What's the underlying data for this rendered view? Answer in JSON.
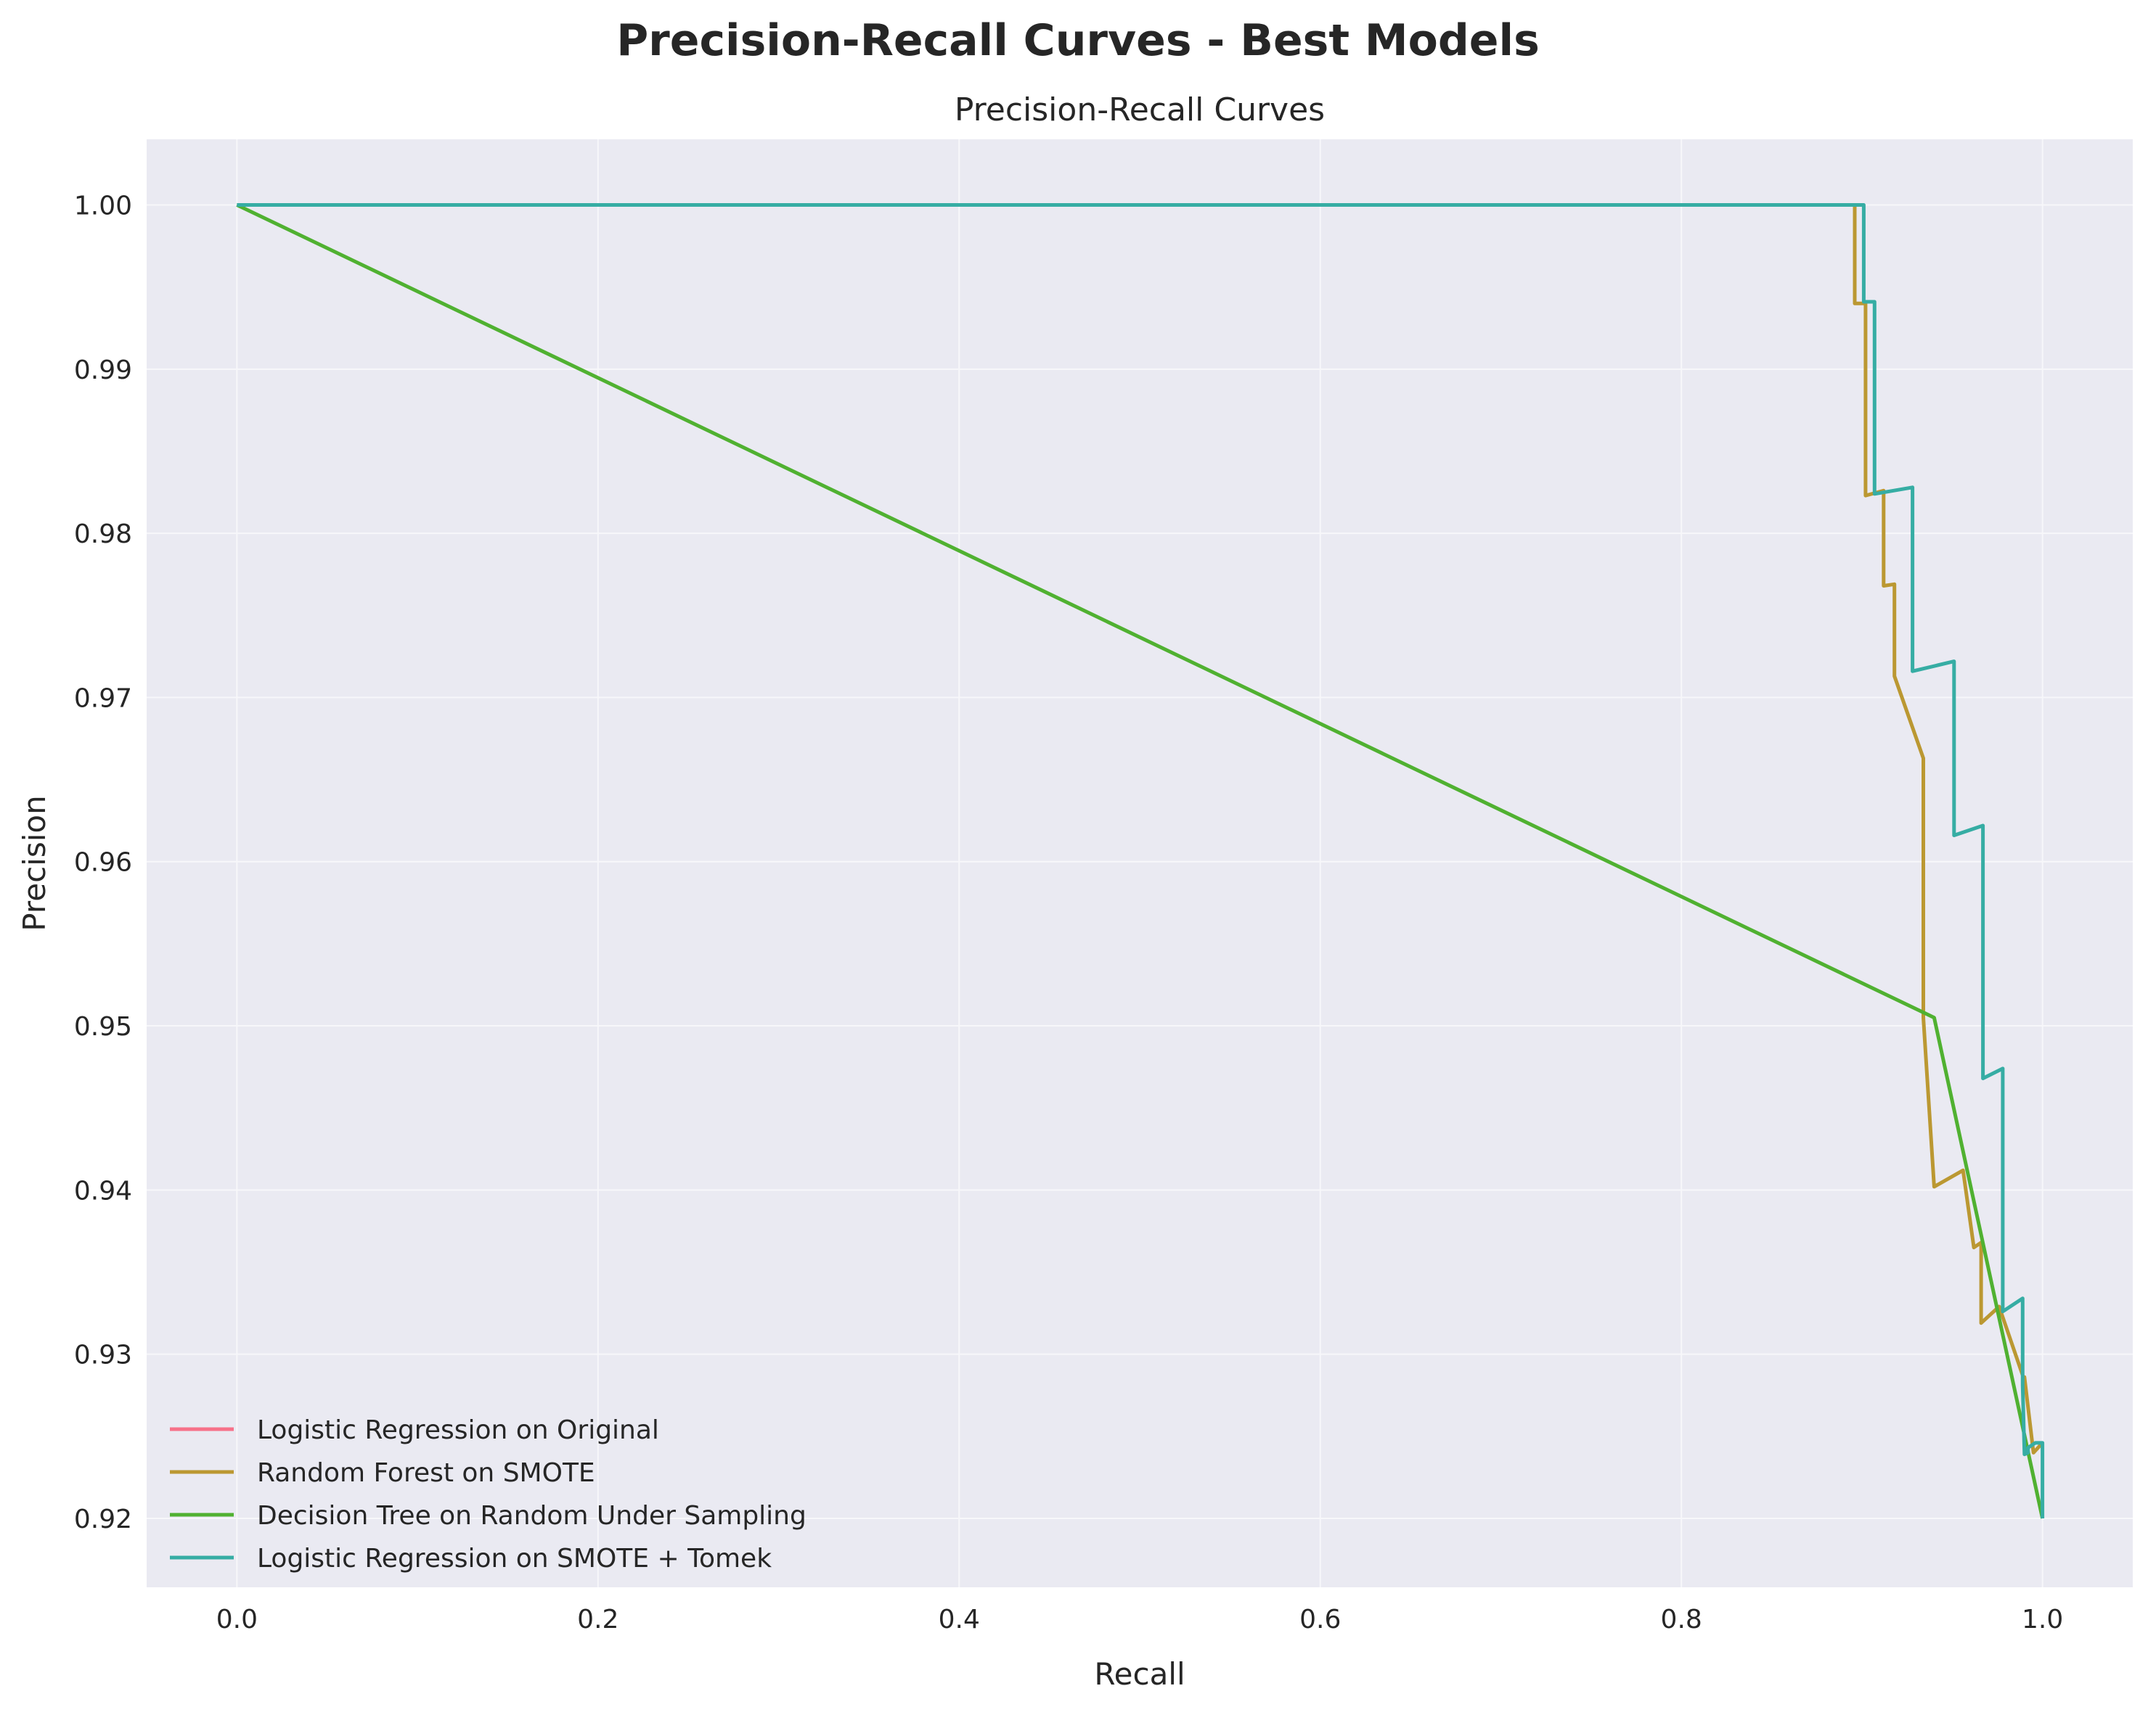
{
  "figure": {
    "suptitle": "Precision-Recall Curves - Best Models"
  },
  "chart_data": {
    "type": "line",
    "title": "Precision-Recall Curves",
    "xlabel": "Recall",
    "ylabel": "Precision",
    "xlim": [
      -0.05,
      1.05
    ],
    "ylim": [
      0.9158,
      1.004
    ],
    "xticks": [
      0.0,
      0.2,
      0.4,
      0.6,
      0.8,
      1.0
    ],
    "xtick_labels": [
      "0.0",
      "0.2",
      "0.4",
      "0.6",
      "0.8",
      "1.0"
    ],
    "yticks": [
      0.92,
      0.93,
      0.94,
      0.95,
      0.96,
      0.97,
      0.98,
      0.99,
      1.0
    ],
    "ytick_labels": [
      "0.92",
      "0.93",
      "0.94",
      "0.95",
      "0.96",
      "0.97",
      "0.98",
      "0.99",
      "1.00"
    ],
    "grid": true,
    "background": "#eaeaf2",
    "grid_color": "#f7f7fa",
    "legend_position": "lower-left",
    "series": [
      {
        "name": "Logistic Regression on Original",
        "color": "#f77189",
        "x": [],
        "y": []
      },
      {
        "name": "Random Forest on SMOTE",
        "color": "#bb9832",
        "x": [
          0.0,
          0.896,
          0.896,
          0.902,
          0.902,
          0.912,
          0.912,
          0.918,
          0.918,
          0.934,
          0.934,
          0.94,
          0.956,
          0.962,
          0.966,
          0.966,
          0.976,
          0.99,
          0.99,
          0.995,
          1.0
        ],
        "y": [
          1.0,
          1.0,
          0.994,
          0.994,
          0.9823,
          0.9826,
          0.9768,
          0.9769,
          0.9713,
          0.9663,
          0.9505,
          0.9402,
          0.9412,
          0.9365,
          0.9368,
          0.9319,
          0.9329,
          0.9284,
          0.9286,
          0.924,
          0.9246
        ]
      },
      {
        "name": "Decision Tree on Random Under Sampling",
        "color": "#50b131",
        "x": [
          0.0,
          0.94,
          1.0
        ],
        "y": [
          1.0,
          0.9505,
          0.92
        ]
      },
      {
        "name": "Logistic Regression on SMOTE + Tomek",
        "color": "#36ada4",
        "x": [
          0.0,
          0.901,
          0.901,
          0.907,
          0.907,
          0.928,
          0.928,
          0.951,
          0.951,
          0.967,
          0.967,
          0.978,
          0.978,
          0.989,
          0.989,
          0.99,
          0.992,
          0.992,
          0.996,
          1.0,
          1.0
        ],
        "y": [
          1.0,
          1.0,
          0.9941,
          0.9941,
          0.9824,
          0.9828,
          0.9716,
          0.9722,
          0.9616,
          0.9622,
          0.9468,
          0.9474,
          0.9326,
          0.9334,
          0.9281,
          0.9239,
          0.924,
          0.9243,
          0.9246,
          0.9246,
          0.92
        ]
      }
    ]
  }
}
